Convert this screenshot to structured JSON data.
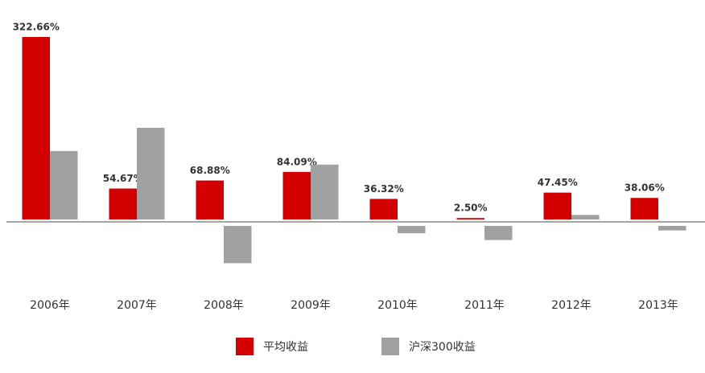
{
  "chart_data": {
    "type": "bar",
    "categories": [
      "2006年",
      "2007年",
      "2008年",
      "2009年",
      "2010年",
      "2011年",
      "2012年",
      "2013年"
    ],
    "series": [
      {
        "name": "平均收益",
        "color": "#d40000",
        "values": [
          322.66,
          54.67,
          68.88,
          84.09,
          36.32,
          2.5,
          47.45,
          38.06
        ],
        "value_labels": [
          "322.66%",
          "54.67%",
          "68.88%",
          "84.09%",
          "36.32%",
          "2.50%",
          "47.45%",
          "38.06%"
        ]
      },
      {
        "name": "沪深300收益",
        "color": "#a0a0a0",
        "values": [
          121,
          162,
          -66,
          97,
          -13,
          -25,
          8,
          -8
        ]
      }
    ]
  }
}
